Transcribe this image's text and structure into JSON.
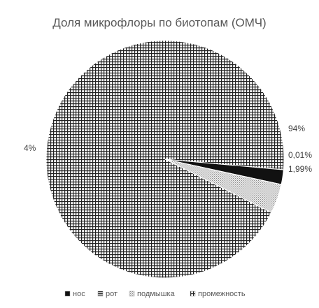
{
  "chart_data": {
    "type": "pie",
    "title": "Доля микрофлоры по биотопам (ОМЧ)",
    "categories": [
      "нос",
      "рот",
      "подмышка",
      "промежность"
    ],
    "values": [
      1.99,
      0.01,
      4,
      94
    ],
    "value_labels": [
      "1,99%",
      "0,01%",
      "4%",
      "94%"
    ],
    "legend_position": "bottom",
    "patterns": [
      "solid-dark",
      "horizontal-lines",
      "dots",
      "grid"
    ]
  }
}
